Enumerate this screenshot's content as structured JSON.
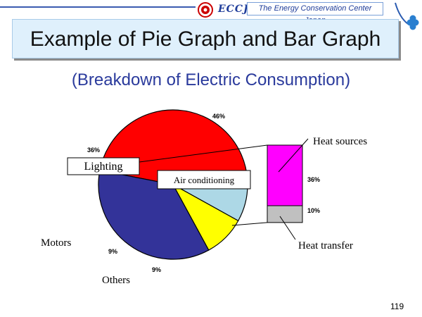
{
  "header": {
    "logo_text": "ECCJ",
    "organization": "The Energy Conservation Center Japan"
  },
  "slide": {
    "title": "Example of Pie Graph and Bar Graph",
    "subtitle": "(Breakdown of Electric Consumption)",
    "page_number": "119"
  },
  "colors": {
    "air_conditioning": "#ff0000",
    "lighting": "#333399",
    "motors": "#ffff00",
    "others": "#add8e6",
    "heat_sources": "#ff00ff",
    "heat_transfer": "#c0c0c0"
  },
  "chart_data": [
    {
      "type": "pie",
      "slices": [
        {
          "label": "Air conditioning",
          "value": 46,
          "value_label": "46%",
          "color": "#ff0000"
        },
        {
          "label": "Others",
          "value": 9,
          "value_label": "9%",
          "color": "#add8e6"
        },
        {
          "label": "Motors",
          "value": 9,
          "value_label": "9%",
          "color": "#ffff00"
        },
        {
          "label": "Lighting",
          "value": 36,
          "value_label": "36%",
          "color": "#333399"
        }
      ]
    },
    {
      "type": "bar",
      "stacked": true,
      "breakdown_of": "Air conditioning",
      "segments": [
        {
          "label": "Heat sources",
          "value": 36,
          "value_label": "36%",
          "color": "#ff00ff"
        },
        {
          "label": "Heat transfer",
          "value": 10,
          "value_label": "10%",
          "color": "#c0c0c0"
        }
      ]
    }
  ]
}
